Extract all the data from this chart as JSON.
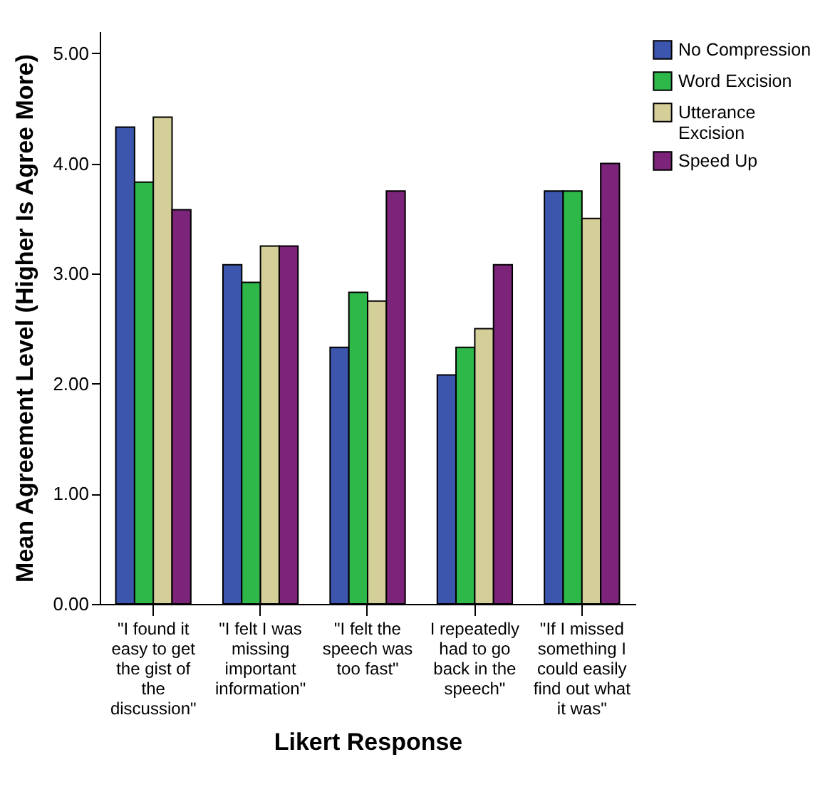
{
  "chart_data": {
    "type": "bar",
    "xlabel": "Likert Response",
    "ylabel": "Mean Agreement Level (Higher Is Agree More)",
    "categories": [
      "\"I found it easy to get the gist of the discussion\"",
      "\"I felt I was missing important information\"",
      "\"I felt the speech was too fast\"",
      "I repeatedly had to go back in the speech\"",
      "\"If I missed something I could easily find out what it was\""
    ],
    "series": [
      {
        "name": "No Compression",
        "color": "#3d56ad",
        "values": [
          4.33,
          3.08,
          2.33,
          2.08,
          3.75
        ]
      },
      {
        "name": "Word Excision",
        "color": "#2fb84a",
        "values": [
          3.83,
          2.92,
          2.83,
          2.33,
          3.75
        ]
      },
      {
        "name": "Utterance Excision",
        "color": "#d4cf98",
        "values": [
          4.42,
          3.25,
          2.75,
          2.5,
          3.5
        ]
      },
      {
        "name": "Speed Up",
        "color": "#7b2479",
        "values": [
          3.58,
          3.25,
          3.75,
          3.08,
          4.0
        ]
      }
    ],
    "ylim": [
      0,
      5.2
    ],
    "yticks": [
      {
        "value": 0,
        "label": "0.00"
      },
      {
        "value": 1,
        "label": "1.00"
      },
      {
        "value": 2,
        "label": "2.00"
      },
      {
        "value": 3,
        "label": "3.00"
      },
      {
        "value": 4,
        "label": "4.00"
      },
      {
        "value": 5,
        "label": "5.00"
      }
    ],
    "grid": false,
    "legend": "top right"
  }
}
